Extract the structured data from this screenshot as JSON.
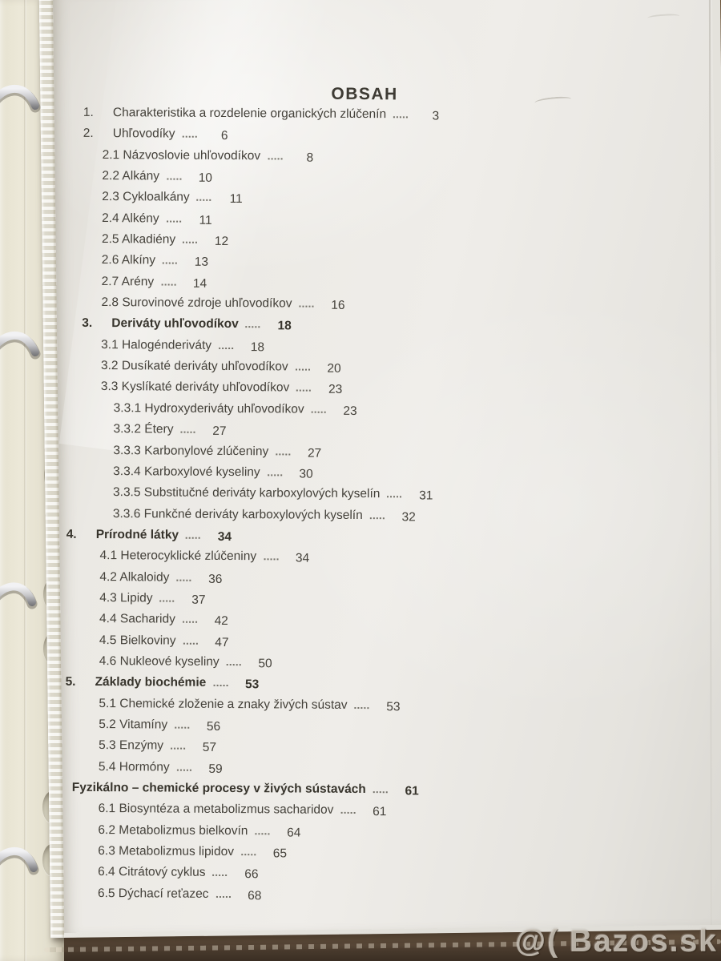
{
  "document": {
    "title": "OBSAH",
    "entries": [
      {
        "num": "1.",
        "label": "Charakteristika a rozdelenie organických zlúčenín",
        "page": "3",
        "ind": "l1",
        "bold": false
      },
      {
        "num": "2.",
        "label": "Uhľovodíky",
        "page": "6",
        "ind": "l1",
        "bold": false
      },
      {
        "num": "",
        "label": "2.1 Názvoslovie uhľovodíkov",
        "page": "8",
        "ind": "l2",
        "bold": false
      },
      {
        "num": "",
        "label": "2.2 Alkány",
        "page": "10",
        "ind": "l2",
        "bold": false
      },
      {
        "num": "",
        "label": "2.3 Cykloalkány",
        "page": "11",
        "ind": "l2",
        "bold": false
      },
      {
        "num": "",
        "label": "2.4 Alkény",
        "page": "11",
        "ind": "l2",
        "bold": false
      },
      {
        "num": "",
        "label": "2.5 Alkadiény",
        "page": "12",
        "ind": "l2",
        "bold": false
      },
      {
        "num": "",
        "label": "2.6 Alkíny",
        "page": "13",
        "ind": "l2",
        "bold": false
      },
      {
        "num": "",
        "label": "2.7 Arény",
        "page": "14",
        "ind": "l2",
        "bold": false
      },
      {
        "num": "",
        "label": "2.8 Surovinové zdroje uhľovodíkov",
        "page": "16",
        "ind": "l2",
        "bold": false
      },
      {
        "num": "3.",
        "label": "Deriváty uhľovodíkov",
        "page": "18",
        "ind": "l1",
        "bold": true
      },
      {
        "num": "",
        "label": "3.1 Halogénderiváty",
        "page": "18",
        "ind": "l2",
        "bold": false
      },
      {
        "num": "",
        "label": "3.2 Dusíkaté deriváty uhľovodíkov",
        "page": "20",
        "ind": "l2",
        "bold": false
      },
      {
        "num": "",
        "label": "3.3 Kyslíkaté deriváty uhľovodíkov",
        "page": "23",
        "ind": "l2",
        "bold": false
      },
      {
        "num": "",
        "label": "3.3.1 Hydroxyderiváty uhľovodíkov",
        "page": "23",
        "ind": "l3",
        "bold": false
      },
      {
        "num": "",
        "label": "3.3.2 Étery",
        "page": "27",
        "ind": "l3",
        "bold": false
      },
      {
        "num": "",
        "label": "3.3.3 Karbonylové zlúčeniny",
        "page": "27",
        "ind": "l3",
        "bold": false
      },
      {
        "num": "",
        "label": "3.3.4 Karboxylové kyseliny",
        "page": "30",
        "ind": "l3",
        "bold": false
      },
      {
        "num": "",
        "label": "3.3.5 Substitučné deriváty karboxylových kyselín",
        "page": "31",
        "ind": "l3",
        "bold": false
      },
      {
        "num": "",
        "label": "3.3.6 Funkčné deriváty karboxylových kyselín",
        "page": "32",
        "ind": "l3",
        "bold": false
      },
      {
        "num": "4.",
        "label": "Prírodné látky",
        "page": "34",
        "ind": "l0",
        "bold": true
      },
      {
        "num": "",
        "label": "4.1 Heterocyklické zlúčeniny",
        "page": "34",
        "ind": "l2",
        "bold": false
      },
      {
        "num": "",
        "label": "4.2 Alkaloidy",
        "page": "36",
        "ind": "l2",
        "bold": false
      },
      {
        "num": "",
        "label": "4.3 Lipidy",
        "page": "37",
        "ind": "l2",
        "bold": false
      },
      {
        "num": "",
        "label": "4.4 Sacharidy",
        "page": "42",
        "ind": "l2",
        "bold": false
      },
      {
        "num": "",
        "label": "4.5 Bielkoviny",
        "page": "47",
        "ind": "l2",
        "bold": false
      },
      {
        "num": "",
        "label": "4.6 Nukleové kyseliny",
        "page": "50",
        "ind": "l2",
        "bold": false
      },
      {
        "num": "5.",
        "label": "Základy biochémie",
        "page": "53",
        "ind": "l0",
        "bold": true
      },
      {
        "num": "",
        "label": "5.1 Chemické zloženie a znaky živých sústav",
        "page": "53",
        "ind": "l2",
        "bold": false
      },
      {
        "num": "",
        "label": "5.2 Vitamíny",
        "page": "56",
        "ind": "l2",
        "bold": false
      },
      {
        "num": "",
        "label": "5.3 Enzýmy",
        "page": "57",
        "ind": "l2",
        "bold": false
      },
      {
        "num": "",
        "label": "5.4 Hormóny",
        "page": "59",
        "ind": "l2",
        "bold": false
      },
      {
        "num": "",
        "label": "Fyzikálno – chemické procesy v živých sústavách",
        "page": "61",
        "ind": "lf",
        "bold": true
      },
      {
        "num": "",
        "label": "6.1 Biosyntéza a metabolizmus sacharidov",
        "page": "61",
        "ind": "l2",
        "bold": false
      },
      {
        "num": "",
        "label": "6.2 Metabolizmus bielkovín",
        "page": "64",
        "ind": "l2",
        "bold": false
      },
      {
        "num": "",
        "label": "6.3 Metabolizmus lipidov",
        "page": "65",
        "ind": "l2",
        "bold": false
      },
      {
        "num": "",
        "label": "6.4 Citrátový cyklus",
        "page": "66",
        "ind": "l2",
        "bold": false
      },
      {
        "num": "",
        "label": "6.5 Dýchací reťazec",
        "page": "68",
        "ind": "l2",
        "bold": false
      }
    ]
  },
  "watermark": {
    "text": "@( Bazos.sk"
  },
  "colors": {
    "paper": "#efede9",
    "binder_cream": "#e9e5d4",
    "wood_light": "#97784f",
    "wood_dark": "#332a20",
    "text": "#45423b",
    "text_bold": "#37342c",
    "watermark": "#d6d0c5"
  }
}
